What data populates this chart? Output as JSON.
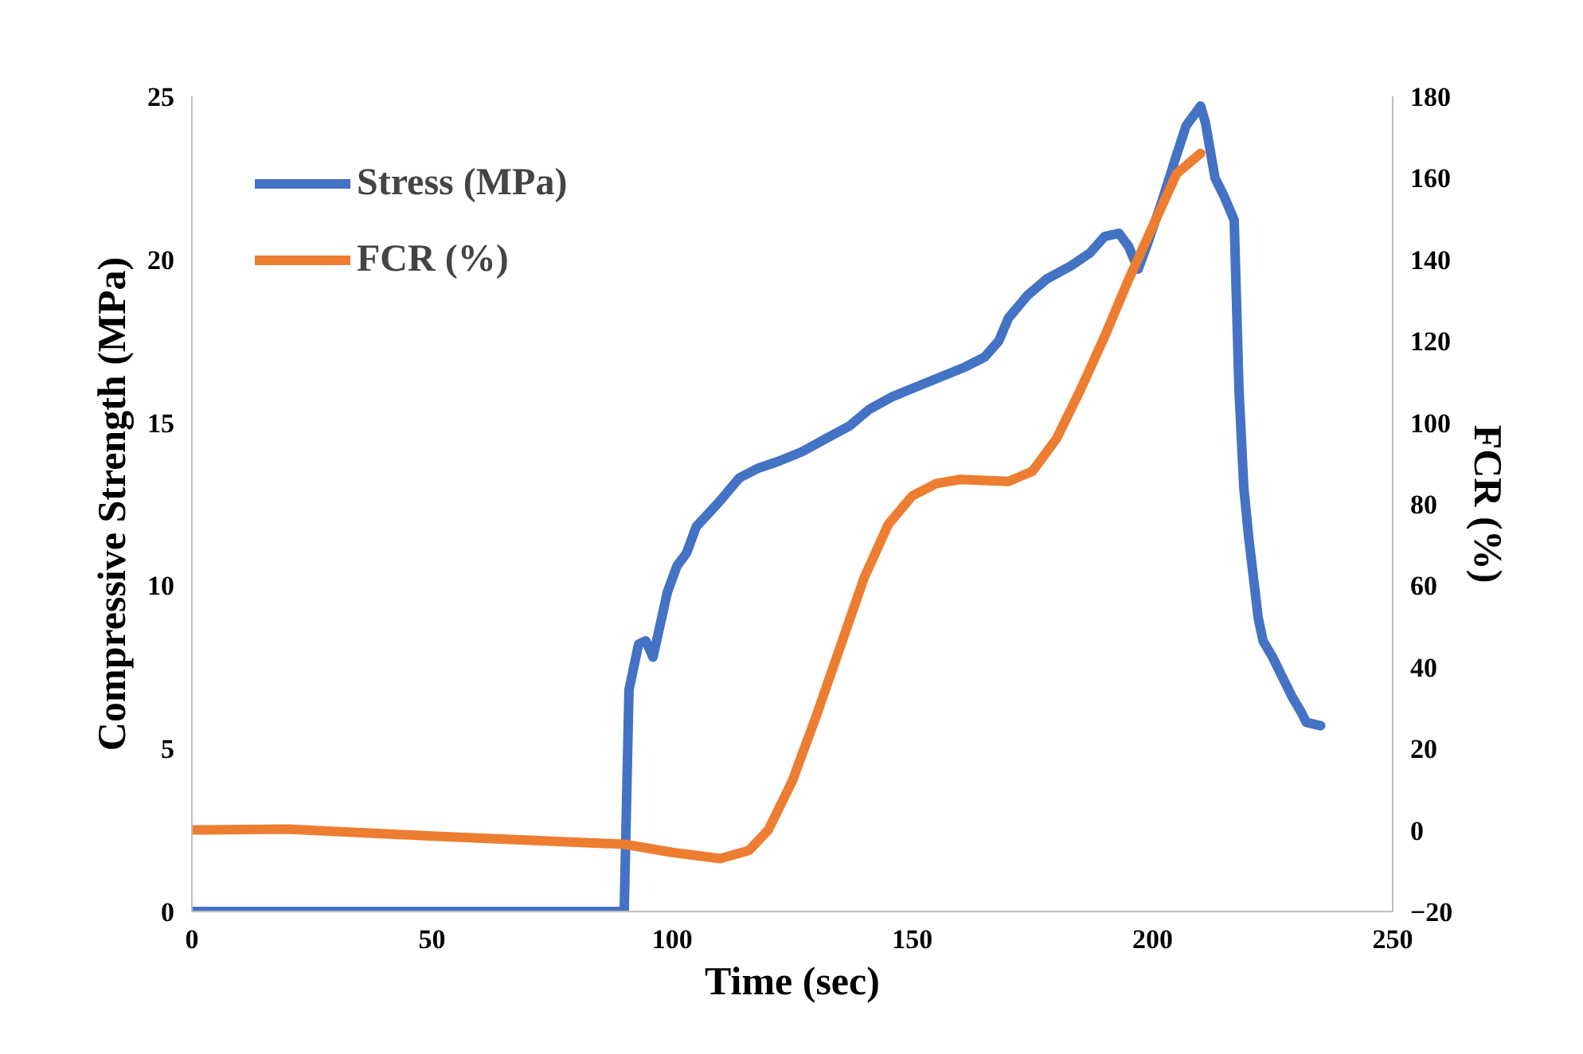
{
  "chart_data": {
    "type": "line",
    "xlabel": "Time (sec)",
    "ylabel": "Compressive Strength (MPa)",
    "y2label": "FCR (%)",
    "xlim": [
      0,
      250
    ],
    "xticks": [
      0,
      50,
      100,
      150,
      200,
      250
    ],
    "ylim": [
      0,
      25
    ],
    "yticks": [
      0,
      5,
      10,
      15,
      20,
      25
    ],
    "y2lim": [
      -20,
      180
    ],
    "y2ticks": [
      -20,
      0,
      20,
      40,
      60,
      80,
      100,
      120,
      140,
      160,
      180
    ],
    "grid": false,
    "legend": "top left",
    "marker": "none",
    "line_style": "solid",
    "series": [
      {
        "name": "Stress (MPa)",
        "color": "#4472c4",
        "axis": "y",
        "x": [
          0,
          90,
          91,
          93,
          94.5,
          96,
          99,
          101,
          103,
          105,
          110,
          114,
          118,
          122,
          127,
          132,
          137,
          141,
          146,
          151,
          156,
          161,
          165,
          168,
          170,
          174,
          178,
          183,
          187,
          190,
          193,
          195,
          197,
          199,
          202,
          205,
          207,
          209,
          210,
          211,
          213,
          215,
          217,
          218,
          219,
          220,
          222,
          223,
          225,
          227,
          229,
          231,
          232,
          235
        ],
        "values": [
          0,
          0,
          6.8,
          8.2,
          8.3,
          7.8,
          9.8,
          10.6,
          11.0,
          11.8,
          12.6,
          13.3,
          13.6,
          13.8,
          14.1,
          14.5,
          14.9,
          15.4,
          15.8,
          16.1,
          16.4,
          16.7,
          17.0,
          17.5,
          18.2,
          18.9,
          19.4,
          19.8,
          20.2,
          20.7,
          20.8,
          20.4,
          19.7,
          20.5,
          21.8,
          23.2,
          24.1,
          24.5,
          24.7,
          24.2,
          22.5,
          21.9,
          21.2,
          16.0,
          13.0,
          11.5,
          9.0,
          8.3,
          7.8,
          7.2,
          6.6,
          6.1,
          5.8,
          5.7
        ]
      },
      {
        "name": "FCR (%)",
        "color": "#ed7d31",
        "axis": "y2",
        "x": [
          0,
          20,
          50,
          90,
          100,
          110,
          116,
          120,
          125,
          130,
          135,
          140,
          145,
          150,
          155,
          160,
          170,
          175,
          180,
          185,
          190,
          195,
          200,
          205,
          210
        ],
        "values": [
          0,
          0.2,
          -1.5,
          -3.5,
          -5.5,
          -7,
          -5,
          0,
          12,
          28,
          45,
          62,
          75,
          82,
          85,
          86,
          85.5,
          88,
          96,
          108,
          121,
          135,
          148,
          161,
          166
        ]
      }
    ]
  }
}
